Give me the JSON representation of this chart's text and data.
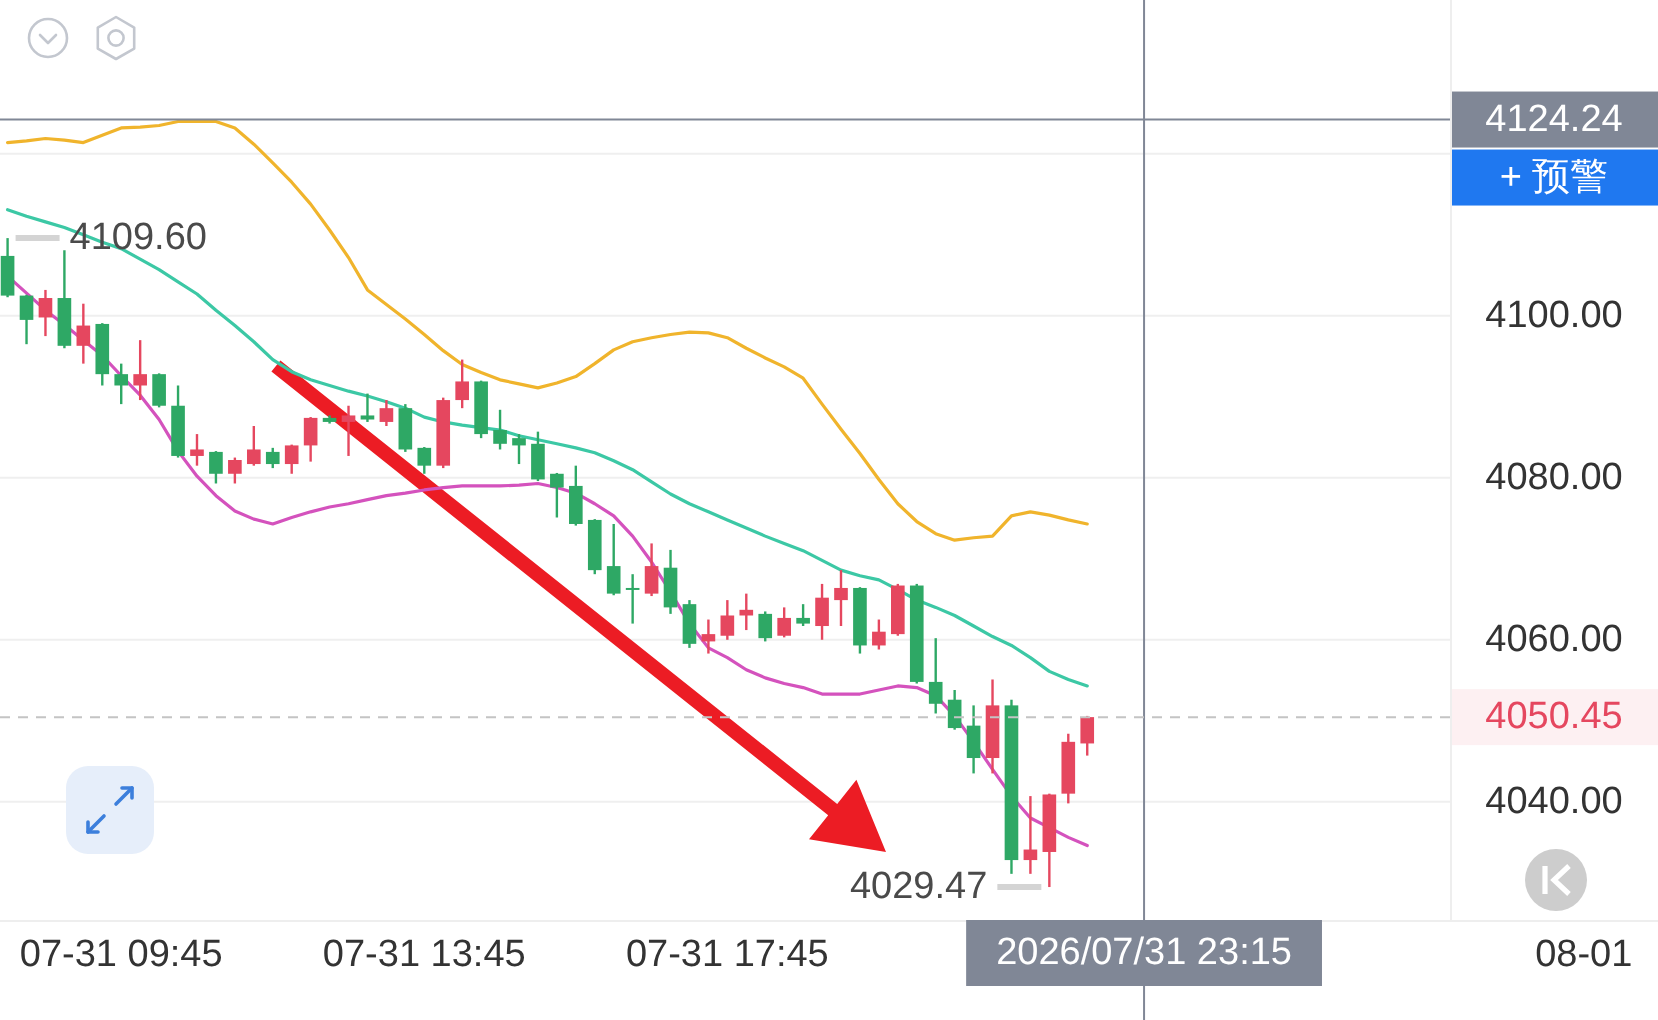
{
  "chart_data": {
    "type": "candlestick",
    "x": [
      "2026-07-31T08:15",
      "2026-07-31T08:30",
      "2026-07-31T08:45",
      "2026-07-31T09:00",
      "2026-07-31T09:15",
      "2026-07-31T09:30",
      "2026-07-31T09:45",
      "2026-07-31T10:00",
      "2026-07-31T10:15",
      "2026-07-31T10:30",
      "2026-07-31T10:45",
      "2026-07-31T11:00",
      "2026-07-31T11:15",
      "2026-07-31T11:30",
      "2026-07-31T11:45",
      "2026-07-31T12:00",
      "2026-07-31T12:15",
      "2026-07-31T12:30",
      "2026-07-31T12:45",
      "2026-07-31T13:00",
      "2026-07-31T13:15",
      "2026-07-31T13:30",
      "2026-07-31T13:45",
      "2026-07-31T14:00",
      "2026-07-31T14:15",
      "2026-07-31T14:30",
      "2026-07-31T14:45",
      "2026-07-31T15:00",
      "2026-07-31T15:15",
      "2026-07-31T15:30",
      "2026-07-31T15:45",
      "2026-07-31T16:00",
      "2026-07-31T16:15",
      "2026-07-31T16:30",
      "2026-07-31T16:45",
      "2026-07-31T17:00",
      "2026-07-31T17:15",
      "2026-07-31T17:30",
      "2026-07-31T17:45",
      "2026-07-31T18:00",
      "2026-07-31T18:15",
      "2026-07-31T18:30",
      "2026-07-31T18:45",
      "2026-07-31T19:00",
      "2026-07-31T19:15",
      "2026-07-31T19:30",
      "2026-07-31T19:45",
      "2026-07-31T20:00",
      "2026-07-31T20:15",
      "2026-07-31T20:30",
      "2026-07-31T20:45",
      "2026-07-31T21:00",
      "2026-07-31T21:15",
      "2026-07-31T21:30",
      "2026-07-31T21:45",
      "2026-07-31T22:00",
      "2026-07-31T22:15",
      "2026-07-31T22:30"
    ],
    "ohlc": [
      [
        4107.4,
        4109.6,
        4102.3,
        4102.5
      ],
      [
        4102.5,
        4102.6,
        4096.5,
        4099.5
      ],
      [
        4099.8,
        4103.2,
        4097.5,
        4102.2
      ],
      [
        4102.2,
        4108.1,
        4096.0,
        4096.3
      ],
      [
        4096.3,
        4101.5,
        4094.1,
        4098.8
      ],
      [
        4099.0,
        4099.1,
        4091.4,
        4092.8
      ],
      [
        4092.8,
        4094.1,
        4089.1,
        4091.4
      ],
      [
        4091.4,
        4097.0,
        4089.6,
        4092.8
      ],
      [
        4092.8,
        4092.9,
        4088.7,
        4088.9
      ],
      [
        4088.9,
        4091.4,
        4082.5,
        4082.7
      ],
      [
        4082.7,
        4085.4,
        4081.5,
        4083.5
      ],
      [
        4083.2,
        4083.3,
        4079.3,
        4080.5
      ],
      [
        4080.5,
        4082.5,
        4079.3,
        4082.2
      ],
      [
        4081.7,
        4086.4,
        4081.5,
        4083.5
      ],
      [
        4083.2,
        4083.7,
        4081.2,
        4081.7
      ],
      [
        4081.7,
        4084.1,
        4080.5,
        4084.0
      ],
      [
        4084.0,
        4087.5,
        4082.0,
        4087.4
      ],
      [
        4087.4,
        4087.7,
        4086.7,
        4086.9
      ],
      [
        4086.9,
        4088.9,
        4082.7,
        4087.7
      ],
      [
        4087.7,
        4090.4,
        4086.9,
        4087.2
      ],
      [
        4086.9,
        4089.6,
        4086.4,
        4088.6
      ],
      [
        4088.6,
        4089.1,
        4083.2,
        4083.5
      ],
      [
        4083.7,
        4083.8,
        4080.5,
        4081.5
      ],
      [
        4081.5,
        4089.9,
        4081.2,
        4089.6
      ],
      [
        4089.6,
        4094.6,
        4088.6,
        4091.9
      ],
      [
        4091.9,
        4092.0,
        4084.9,
        4085.4
      ],
      [
        4085.9,
        4088.4,
        4083.5,
        4084.2
      ],
      [
        4084.9,
        4085.4,
        4081.7,
        4084.0
      ],
      [
        4084.2,
        4085.7,
        4079.6,
        4079.8
      ],
      [
        4080.5,
        4080.6,
        4075.1,
        4078.8
      ],
      [
        4079.0,
        4081.5,
        4074.1,
        4074.3
      ],
      [
        4074.8,
        4074.9,
        4068.1,
        4068.6
      ],
      [
        4069.1,
        4074.3,
        4065.5,
        4065.7
      ],
      [
        4066.4,
        4068.1,
        4062.0,
        4066.2
      ],
      [
        4065.7,
        4071.9,
        4065.4,
        4069.1
      ],
      [
        4068.9,
        4071.1,
        4063.2,
        4064.0
      ],
      [
        4064.4,
        4064.9,
        4059.0,
        4059.5
      ],
      [
        4059.8,
        4062.5,
        4058.3,
        4060.7
      ],
      [
        4060.5,
        4064.9,
        4060.0,
        4063.0
      ],
      [
        4063.0,
        4065.7,
        4061.2,
        4063.7
      ],
      [
        4063.2,
        4063.5,
        4059.8,
        4060.2
      ],
      [
        4060.5,
        4064.0,
        4060.3,
        4062.7
      ],
      [
        4062.7,
        4064.4,
        4061.7,
        4062.0
      ],
      [
        4061.7,
        4066.9,
        4060.0,
        4065.2
      ],
      [
        4064.9,
        4068.6,
        4061.7,
        4066.4
      ],
      [
        4066.4,
        4066.5,
        4058.3,
        4059.3
      ],
      [
        4059.3,
        4062.5,
        4058.8,
        4061.0
      ],
      [
        4060.7,
        4066.9,
        4060.5,
        4066.7
      ],
      [
        4066.7,
        4066.9,
        4054.6,
        4054.8
      ],
      [
        4054.8,
        4060.2,
        4050.9,
        4052.1
      ],
      [
        4052.6,
        4053.8,
        4048.9,
        4049.1
      ],
      [
        4049.4,
        4051.9,
        4043.5,
        4045.4
      ],
      [
        4045.4,
        4055.1,
        4043.5,
        4051.9
      ],
      [
        4051.9,
        4052.6,
        4031.1,
        4032.8
      ],
      [
        4032.8,
        4040.7,
        4031.1,
        4034.1
      ],
      [
        4033.8,
        4041.0,
        4029.47,
        4040.9
      ],
      [
        4041.0,
        4048.4,
        4039.8,
        4047.4
      ],
      [
        4047.2,
        4050.6,
        4045.7,
        4050.45
      ]
    ],
    "colors": [
      "#2ea865",
      "#2ea865",
      "#e5475f",
      "#2ea865",
      "#e5475f",
      "#2ea865",
      "#2ea865",
      "#e5475f",
      "#2ea865",
      "#2ea865",
      "#e5475f",
      "#2ea865",
      "#e5475f",
      "#e5475f",
      "#2ea865",
      "#e5475f",
      "#e5475f",
      "#2ea865",
      "#e5475f",
      "#2ea865",
      "#e5475f",
      "#2ea865",
      "#2ea865",
      "#e5475f",
      "#e5475f",
      "#2ea865",
      "#2ea865",
      "#2ea865",
      "#2ea865",
      "#2ea865",
      "#2ea865",
      "#2ea865",
      "#2ea865",
      "#2ea865",
      "#e5475f",
      "#2ea865",
      "#2ea865",
      "#e5475f",
      "#e5475f",
      "#e5475f",
      "#2ea865",
      "#e5475f",
      "#2ea865",
      "#e5475f",
      "#e5475f",
      "#2ea865",
      "#e5475f",
      "#e5475f",
      "#2ea865",
      "#2ea865",
      "#2ea865",
      "#2ea865",
      "#e5475f",
      "#2ea865",
      "#e5475f",
      "#e5475f",
      "#e5475f",
      "#e5475f"
    ],
    "series": [
      {
        "type": "line",
        "color": "#f0b42c",
        "values": [
          4121.4,
          4121.6,
          4121.9,
          4121.7,
          4121.4,
          4122.3,
          4123.2,
          4123.3,
          4123.5,
          4124.0,
          4124.0,
          4124.0,
          4123.2,
          4121.2,
          4118.9,
          4116.5,
          4113.8,
          4110.6,
          4107.2,
          4103.2,
          4101.4,
          4099.6,
          4097.7,
          4095.7,
          4094.0,
          4093.0,
          4092.1,
          4091.6,
          4091.1,
          4091.7,
          4092.5,
          4094.1,
          4095.8,
          4096.8,
          4097.3,
          4097.7,
          4098.0,
          4097.9,
          4097.3,
          4096.0,
          4094.8,
          4093.7,
          4092.3,
          4089.1,
          4086.0,
          4083.0,
          4079.8,
          4076.8,
          4074.6,
          4073.1,
          4072.3,
          4072.6,
          4072.8,
          4075.3,
          4075.8,
          4075.4,
          4074.8,
          4074.3
        ]
      },
      {
        "type": "line",
        "color": "#3cc8a5",
        "values": [
          4113.1,
          4112.3,
          4111.6,
          4110.9,
          4110.0,
          4109.1,
          4108.3,
          4107.0,
          4105.7,
          4104.2,
          4102.7,
          4100.7,
          4098.8,
          4096.8,
          4094.6,
          4093.1,
          4092.1,
          4091.4,
          4090.7,
          4090.1,
          4089.4,
          4088.6,
          4087.5,
          4086.9,
          4086.5,
          4086.2,
          4085.9,
          4085.2,
          4084.7,
          4084.2,
          4083.7,
          4083.1,
          4082.1,
          4081.0,
          4079.5,
          4078.0,
          4076.8,
          4075.8,
          4074.8,
          4073.8,
          4072.8,
          4071.9,
          4071.0,
          4069.8,
          4068.6,
          4067.9,
          4067.4,
          4066.2,
          4064.9,
          4064.0,
          4063.0,
          4061.7,
          4060.4,
          4059.3,
          4057.8,
          4056.1,
          4055.1,
          4054.3
        ]
      },
      {
        "type": "line",
        "color": "#d452bd",
        "values": [
          4104.9,
          4102.8,
          4100.7,
          4098.9,
          4097.0,
          4095.1,
          4092.6,
          4090.2,
          4087.2,
          4083.3,
          4080.2,
          4077.8,
          4075.9,
          4074.9,
          4074.3,
          4075.1,
          4075.8,
          4076.4,
          4076.8,
          4077.3,
          4077.8,
          4078.1,
          4078.5,
          4078.8,
          4079.0,
          4079.0,
          4079.0,
          4079.1,
          4079.3,
          4078.8,
          4078.1,
          4076.8,
          4075.3,
          4072.8,
          4069.6,
          4065.9,
          4062.0,
          4059.0,
          4057.8,
          4056.3,
          4055.3,
          4054.6,
          4054.1,
          4053.3,
          4053.3,
          4053.3,
          4053.8,
          4054.3,
          4054.1,
          4053.1,
          4050.6,
          4047.4,
          4044.0,
          4040.7,
          4038.0,
          4036.8,
          4035.6,
          4034.6
        ]
      }
    ],
    "xlim": [
      "2026-07-31T08:09",
      "2026-08-01T06:02"
    ],
    "xticks": [
      {
        "value": "2026-07-31T09:45",
        "label": "07-31 09:45"
      },
      {
        "value": "2026-07-31T13:45",
        "label": "07-31 13:45"
      },
      {
        "value": "2026-07-31T17:45",
        "label": "07-31 17:45"
      },
      {
        "value": "2026-08-01T05:45",
        "label": "08-01"
      }
    ],
    "ylim": [
      4025.4,
      4139.0
    ],
    "yticks": [
      {
        "value": 4040,
        "label": "4040.00"
      },
      {
        "value": 4060,
        "label": "4060.00"
      },
      {
        "value": 4080,
        "label": "4080.00"
      },
      {
        "value": 4100,
        "label": "4100.00"
      },
      {
        "value": 4120,
        "label": null
      }
    ],
    "grid": "y",
    "ref_lines": [
      {
        "axis": "x",
        "value": "2026-07-31T23:15",
        "label": "2026/07/31 23:15",
        "color": "#808796"
      },
      {
        "axis": "y",
        "value": 4124.24,
        "label": "4124.24",
        "color": "#808796"
      },
      {
        "axis": "y",
        "value": 4050.45,
        "label": "4050.45",
        "color": "#c4c4c4",
        "line_style": "dashed"
      }
    ],
    "annotations": [
      {
        "text": "4109.60",
        "x": "2026-07-31T08:15",
        "y": 4109.6
      },
      {
        "text": "4029.47",
        "x": "2026-07-31T22:00",
        "y": 4029.47
      },
      "+ 预警"
    ]
  }
}
